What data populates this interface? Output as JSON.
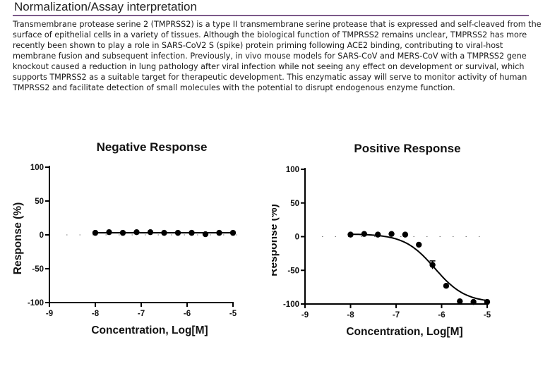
{
  "header": {
    "title": "Normalization/Assay interpretation"
  },
  "body": {
    "paragraph": "Transmembrane protease serine 2 (TMPRSS2) is a type II transmembrane serine protease that is expressed and self-cleaved from the surface of epithelial cells in a variety of tissues. Although the biological function of TMPRSS2 remains unclear, TMPRSS2 has more recently been shown to play a role in SARS-CoV2 S (spike) protein priming following ACE2 binding, contributing to viral-host membrane fusion and subsequent infection. Previously, in vivo mouse models for SARS-CoV and MERS-CoV with a TMPRSS2 gene knockout caused a reduction in lung pathology after viral infection while not seeing any effect on development or survival, which supports TMPRSS2 as a suitable target for therapeutic development. This enzymatic assay will serve to monitor activity of human TMPRSS2 and facilitate detection of small molecules with the potential to disrupt endogenous enzyme function."
  },
  "chart_data": [
    {
      "type": "scatter",
      "title": "Negative Response",
      "xlabel": "Concentration, Log[M]",
      "ylabel": "Response (%)",
      "xlim": [
        -9,
        -5
      ],
      "ylim": [
        -100,
        100
      ],
      "xticks": [
        -9,
        -8,
        -7,
        -6,
        -5
      ],
      "xtick_labels": [
        "-9",
        "-8",
        "-7",
        "-6",
        "-5"
      ],
      "yticks": [
        -100,
        -50,
        0,
        50,
        100
      ],
      "ytick_labels": [
        "-100",
        "-50",
        "0",
        "50",
        "100"
      ],
      "reference_line_y": 0,
      "fit_curve": "flat",
      "x": [
        -8.0,
        -7.7,
        -7.4,
        -7.1,
        -6.8,
        -6.5,
        -6.2,
        -5.9,
        -5.6,
        -5.3,
        -5.0
      ],
      "y": [
        3,
        4,
        3,
        4,
        4,
        3,
        3,
        3,
        1,
        3,
        3
      ],
      "error": [
        0,
        0,
        0,
        0,
        0,
        0,
        0,
        0,
        0,
        0,
        0
      ],
      "color": "#000000"
    },
    {
      "type": "scatter",
      "title": "Positive Response",
      "xlabel": "Concentration, Log[M]",
      "ylabel": "Response (%)",
      "xlim": [
        -9,
        -5
      ],
      "ylim": [
        -100,
        100
      ],
      "xticks": [
        -9,
        -8,
        -7,
        -6,
        -5
      ],
      "xtick_labels": [
        "-9",
        "-8",
        "-7",
        "-6",
        "-5"
      ],
      "yticks": [
        -100,
        -50,
        0,
        50,
        100
      ],
      "ytick_labels": [
        "-100",
        "-50",
        "0",
        "50",
        "100"
      ],
      "reference_line_y": 0,
      "fit_curve": "sigmoid",
      "fit": {
        "top": 4,
        "bottom": -98,
        "logIC50": -6.15,
        "hill": 1.3
      },
      "x": [
        -8.0,
        -7.7,
        -7.4,
        -7.1,
        -6.8,
        -6.5,
        -6.2,
        -5.9,
        -5.6,
        -5.3,
        -5.0
      ],
      "y": [
        3,
        4,
        3,
        4,
        3,
        -12,
        -42,
        -73,
        -96,
        -97,
        -97
      ],
      "error": [
        0,
        0,
        0,
        0,
        0,
        0,
        6,
        0,
        0,
        0,
        0
      ],
      "color": "#000000"
    }
  ]
}
